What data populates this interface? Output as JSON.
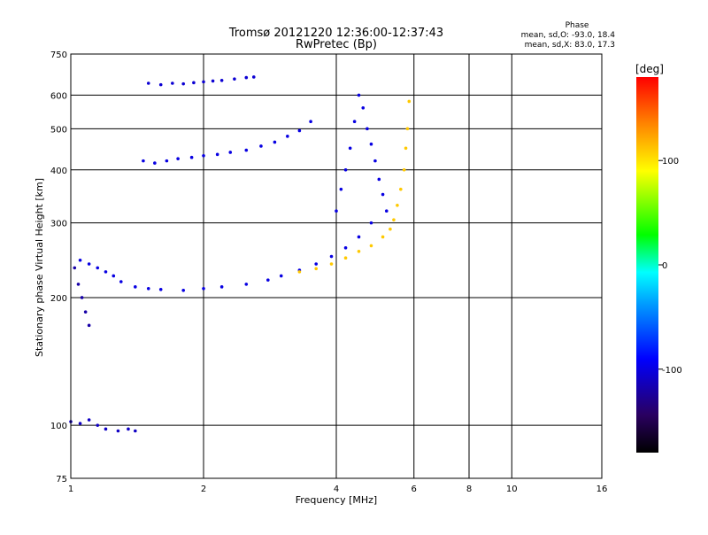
{
  "chart_data": {
    "type": "scatter",
    "title": "Tromsø 20121220 12:36:00-12:37:43",
    "subtitle": "RwPretec (Bp)",
    "phase_stats": {
      "header": "Phase",
      "line1": "mean, sd,O: -93.0, 18.4",
      "line2": "mean, sd,X:  83.0, 17.3"
    },
    "xlabel": "Frequency [MHz]",
    "ylabel": "Stationary phase Virtual Height [km]",
    "x_scale": "log",
    "y_scale": "log",
    "xlim": [
      1,
      16
    ],
    "ylim": [
      75,
      750
    ],
    "xticks": [
      1,
      2,
      4,
      6,
      8,
      10,
      16
    ],
    "yticks": [
      75,
      100,
      200,
      300,
      400,
      500,
      600,
      750
    ],
    "x_grid_lines": [
      2,
      4,
      6,
      8,
      10
    ],
    "y_grid_lines": [
      100,
      200,
      300,
      400,
      500,
      600
    ],
    "grid": true,
    "colorbar": {
      "label": "[deg]",
      "range": [
        -180,
        180
      ],
      "ticks": [
        100,
        0,
        -100
      ],
      "colormap": [
        "#000000",
        "#2a0060",
        "#0000ff",
        "#00a0ff",
        "#00ffff",
        "#00ff00",
        "#ffff00",
        "#ff8000",
        "#ff0000"
      ]
    },
    "series": [
      {
        "phase": -100,
        "x": [
          1.46,
          1.55,
          1.65,
          1.75,
          1.88,
          2.0,
          2.15,
          2.3,
          2.5,
          2.7,
          2.9,
          3.1,
          3.3,
          3.5
        ],
        "y": [
          420,
          415,
          420,
          425,
          428,
          432,
          435,
          440,
          445,
          455,
          465,
          480,
          495,
          520
        ]
      },
      {
        "phase": -100,
        "x": [
          1.05,
          1.1,
          1.15,
          1.2,
          1.25,
          1.3,
          1.4,
          1.5,
          1.6,
          1.8,
          2.0,
          2.2,
          2.5,
          2.8,
          3.0,
          3.3,
          3.6,
          3.9,
          4.2,
          4.5,
          4.8
        ],
        "y": [
          245,
          240,
          235,
          230,
          225,
          218,
          212,
          210,
          209,
          208,
          210,
          212,
          215,
          220,
          225,
          232,
          240,
          250,
          262,
          278,
          300
        ]
      },
      {
        "phase": -100,
        "x": [
          4.0,
          4.1,
          4.2,
          4.3,
          4.4,
          4.5,
          4.6,
          4.7,
          4.8,
          4.9,
          5.0,
          5.1,
          5.2
        ],
        "y": [
          320,
          360,
          400,
          450,
          520,
          600,
          560,
          500,
          460,
          420,
          380,
          350,
          320
        ]
      },
      {
        "phase": -120,
        "x": [
          1.02,
          1.04,
          1.06,
          1.08,
          1.1
        ],
        "y": [
          235,
          215,
          200,
          185,
          172
        ]
      },
      {
        "phase": -110,
        "x": [
          1.0,
          1.05,
          1.1,
          1.15,
          1.2,
          1.28,
          1.35,
          1.4
        ],
        "y": [
          102,
          101,
          103,
          100,
          98,
          97,
          98,
          97
        ]
      },
      {
        "phase": -105,
        "x": [
          1.5,
          1.6,
          1.7,
          1.8,
          1.9,
          2.0,
          2.1,
          2.2,
          2.35,
          2.5,
          2.6
        ],
        "y": [
          640,
          635,
          640,
          638,
          642,
          645,
          648,
          650,
          655,
          660,
          662
        ]
      },
      {
        "phase": 110,
        "x": [
          3.3,
          3.6,
          3.9,
          4.2,
          4.5,
          4.8,
          5.1,
          5.3,
          5.4,
          5.5,
          5.6,
          5.7,
          5.75,
          5.8,
          5.85
        ],
        "y": [
          230,
          234,
          240,
          248,
          257,
          265,
          278,
          290,
          305,
          330,
          360,
          400,
          450,
          500,
          580
        ]
      }
    ]
  }
}
